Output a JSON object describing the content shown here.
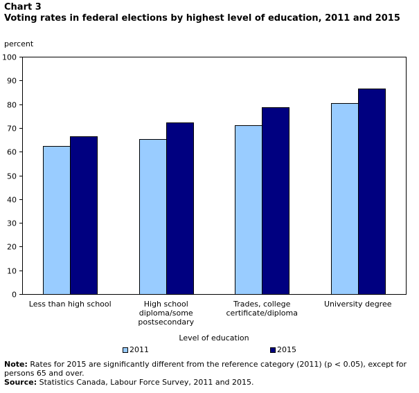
{
  "header": {
    "chart_label": "Chart 3",
    "title": "Voting rates in federal elections by highest level of education, 2011 and 2015",
    "unit": "percent"
  },
  "chart_data": {
    "type": "bar",
    "title": "Voting rates in federal elections by highest level of education, 2011 and 2015",
    "xlabel": "Level of education",
    "ylabel": "percent",
    "ylim": [
      0,
      100
    ],
    "yticks": [
      0,
      10,
      20,
      30,
      40,
      50,
      60,
      70,
      80,
      90,
      100
    ],
    "grid": false,
    "legend_position": "bottom",
    "categories": [
      [
        "Less than high school"
      ],
      [
        "High school",
        "diploma/some",
        "postsecondary"
      ],
      [
        "Trades, college",
        "certificate/diploma"
      ],
      [
        "University degree"
      ]
    ],
    "series": [
      {
        "name": "2011",
        "color": "#99ccff",
        "values": [
          62.3,
          65.2,
          71.0,
          80.6
        ]
      },
      {
        "name": "2015",
        "color": "#000080",
        "values": [
          66.4,
          72.2,
          78.6,
          86.6
        ]
      }
    ]
  },
  "footer": {
    "note_label": "Note:",
    "note_text": " Rates for 2015 are significantly different from the reference category (2011) (p < 0.05), except for persons 65 and over.",
    "source_label": "Source:",
    "source_text": " Statistics Canada, Labour Force Survey, 2011 and 2015."
  }
}
